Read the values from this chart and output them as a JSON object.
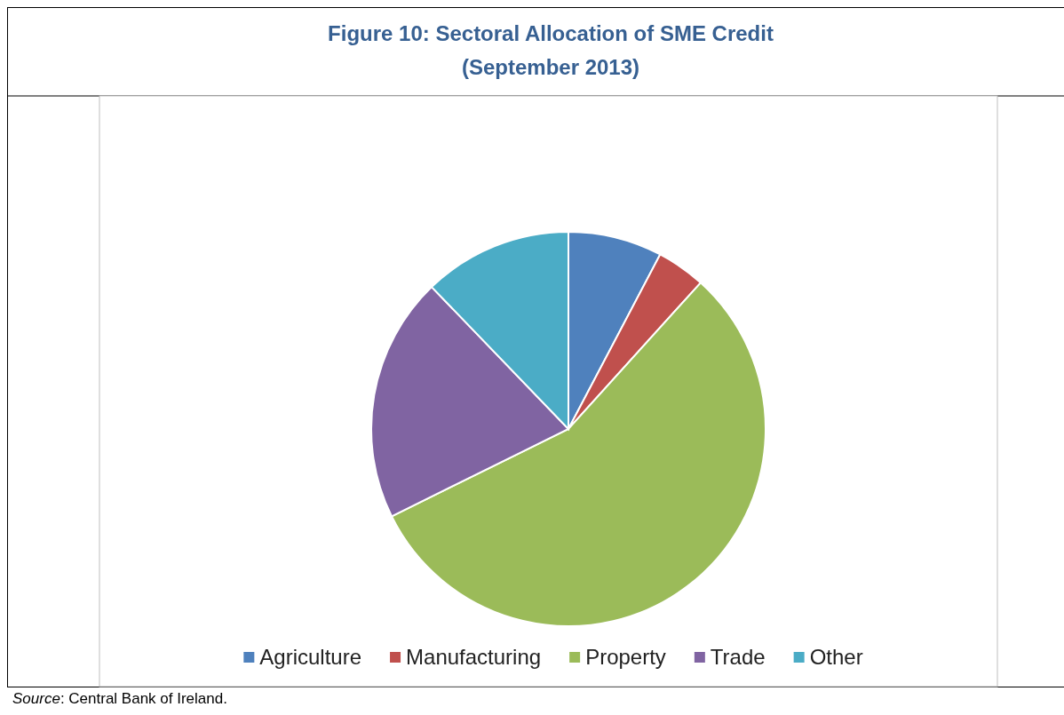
{
  "chart_data": {
    "type": "pie",
    "title": "Figure 10: Sectoral Allocation of SME Credit",
    "subtitle": "(September 2013)",
    "categories": [
      "Agriculture",
      "Manufacturing",
      "Property",
      "Trade",
      "Other"
    ],
    "values": [
      7.7,
      4.0,
      56.0,
      20.1,
      12.2
    ],
    "colors": [
      "#4f81bd",
      "#c0504d",
      "#9bbb59",
      "#8064a2",
      "#4bacc6"
    ],
    "legend": "bottom",
    "annotations": [
      "Source: Central Bank of Ireland."
    ]
  }
}
